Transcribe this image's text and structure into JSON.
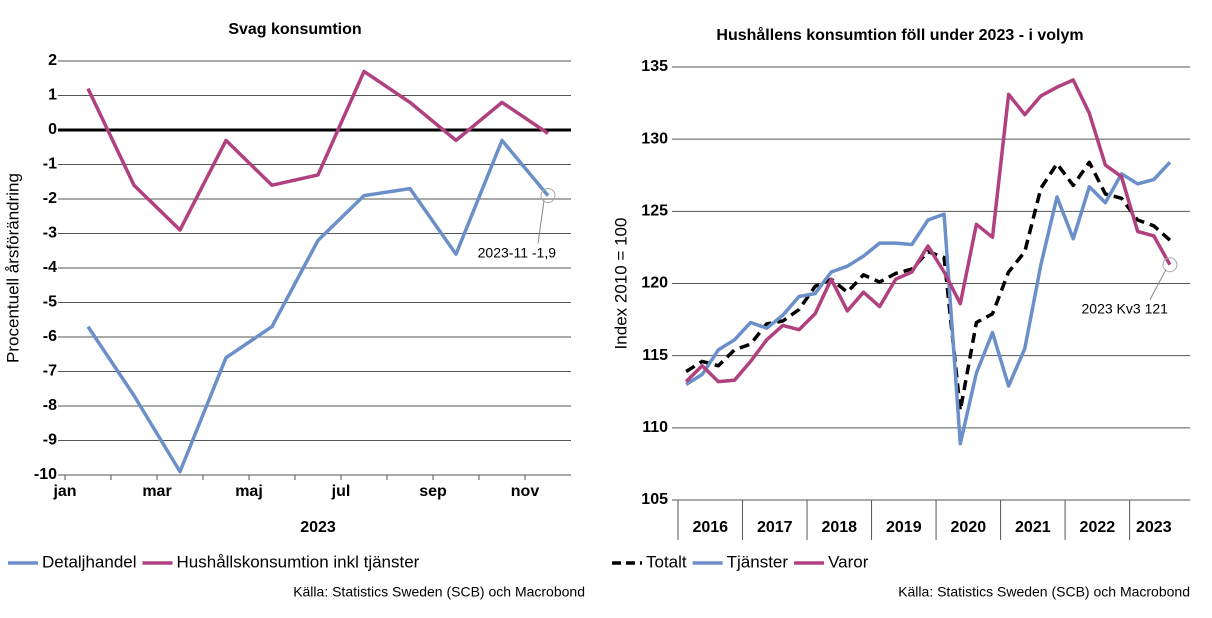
{
  "chart_data": [
    {
      "type": "line",
      "title": "Svag konsumtion",
      "y_label": "Procentuell årsförändring",
      "x_label": "2023",
      "categories": [
        "jan",
        null,
        "mar",
        null,
        "maj",
        null,
        "jul",
        null,
        "sep",
        null,
        "nov"
      ],
      "series": [
        {
          "name": "Detaljhandel",
          "color": "#6b8fc8",
          "values": [
            -5.7,
            -7.7,
            -9.9,
            -6.6,
            -5.7,
            -3.2,
            -1.9,
            -1.7,
            -3.6,
            -0.3,
            -1.9
          ]
        },
        {
          "name": "Hushållskonsumtion inkl tjänster",
          "color": "#b0407f",
          "values": [
            1.2,
            -1.6,
            -2.9,
            -0.3,
            -1.6,
            -1.3,
            1.7,
            0.8,
            -0.3,
            0.8,
            -0.1
          ]
        }
      ],
      "ylim": [
        -10,
        2
      ],
      "yticks": [
        -10,
        -9,
        -8,
        -7,
        -6,
        -5,
        -4,
        -3,
        -2,
        -1,
        0,
        1,
        2
      ],
      "grid": true,
      "zero_line": true,
      "legend": "bottom",
      "annotation": {
        "series": 0,
        "text": "2023-11 -1,9"
      },
      "source": "Källa: Statistics Sweden (SCB) och Macrobond"
    },
    {
      "type": "line",
      "title": "Hushållens konsumtion föll under 2023 - i volym",
      "y_label": "Index 2010 = 100",
      "categories": [
        "2016",
        null,
        null,
        null,
        "2017",
        null,
        null,
        null,
        "2018",
        null,
        null,
        null,
        "2019",
        null,
        null,
        null,
        "2020",
        null,
        null,
        null,
        "2021",
        null,
        null,
        null,
        "2022",
        null,
        null,
        null,
        "2023",
        null,
        null
      ],
      "series": [
        {
          "name": "Totalt",
          "color": "#000000",
          "dashed": true,
          "values": [
            113.9,
            114.6,
            114.3,
            115.4,
            115.8,
            117.2,
            117.4,
            118.2,
            119.8,
            120.3,
            119.4,
            120.6,
            120.1,
            120.7,
            121.0,
            122.2,
            121.8,
            111.2,
            117.3,
            117.9,
            120.8,
            122.2,
            126.6,
            128.3,
            126.8,
            128.4,
            126.2,
            125.9,
            124.4,
            124.0,
            123.0
          ]
        },
        {
          "name": "Tjänster",
          "color": "#6b8fc8",
          "values": [
            113.0,
            113.7,
            115.4,
            116.1,
            117.3,
            116.9,
            117.8,
            119.1,
            119.3,
            120.8,
            121.2,
            121.9,
            122.8,
            122.8,
            122.7,
            124.4,
            124.8,
            108.9,
            113.8,
            116.6,
            112.9,
            115.5,
            121.3,
            126.0,
            123.1,
            126.7,
            125.6,
            127.6,
            126.9,
            127.2,
            128.4
          ]
        },
        {
          "name": "Varor",
          "color": "#b0407f",
          "values": [
            113.2,
            114.3,
            113.2,
            113.3,
            114.6,
            116.1,
            117.1,
            116.8,
            117.9,
            120.3,
            118.1,
            119.4,
            118.4,
            120.3,
            120.8,
            122.6,
            120.8,
            118.6,
            124.1,
            123.2,
            133.1,
            131.7,
            133.0,
            133.6,
            134.1,
            131.8,
            128.2,
            127.4,
            123.6,
            123.3,
            121.3
          ]
        }
      ],
      "ylim": [
        105,
        135
      ],
      "yticks": [
        105,
        110,
        115,
        120,
        125,
        130,
        135
      ],
      "grid": true,
      "zero_line": false,
      "legend": "bottom",
      "annotation": {
        "series": 2,
        "text": "2023 Kv3 121"
      },
      "source": "Källa: Statistics Sweden (SCB) och Macrobond"
    }
  ]
}
